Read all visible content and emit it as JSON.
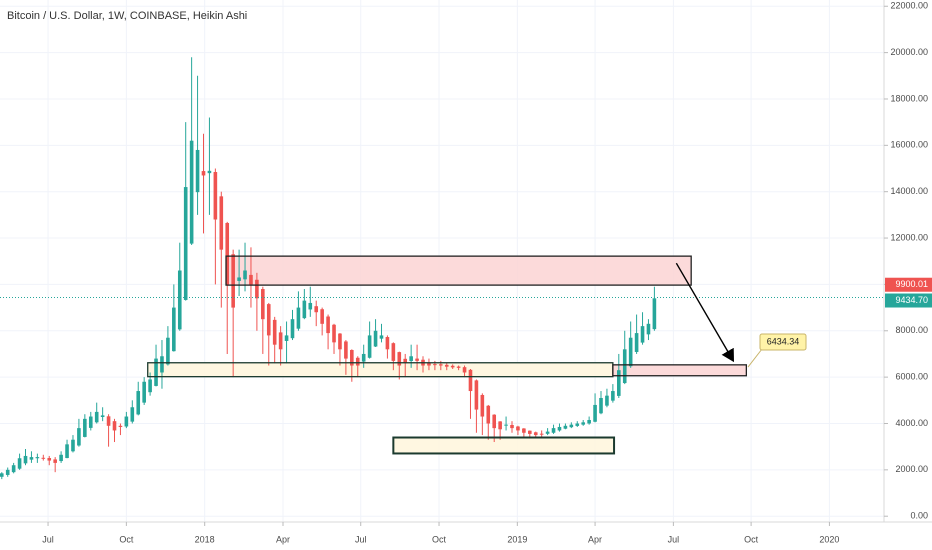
{
  "chart_data": {
    "type": "candlestick",
    "title": "Bitcoin / U.S. Dollar, 1W, COINBASE, Heikin Ashi",
    "up_color": "#26a69a",
    "down_color": "#ef5350",
    "xlim": [
      -0.3,
      148.7
    ],
    "xticks": [
      {
        "value": 7.8,
        "label": "Jul"
      },
      {
        "value": 21,
        "label": "Oct"
      },
      {
        "value": 34.2,
        "label": "2018"
      },
      {
        "value": 47.4,
        "label": "Apr"
      },
      {
        "value": 60.5,
        "label": "Jul"
      },
      {
        "value": 73.7,
        "label": "Oct"
      },
      {
        "value": 86.9,
        "label": "2019"
      },
      {
        "value": 100,
        "label": "Apr"
      },
      {
        "value": 113.2,
        "label": "Jul"
      },
      {
        "value": 126.3,
        "label": "Oct"
      },
      {
        "value": 139.5,
        "label": "2020"
      }
    ],
    "ylim": [
      -250,
      22270
    ],
    "yticks": [
      {
        "value": 0,
        "label": "0.00"
      },
      {
        "value": 2000,
        "label": "2000.00"
      },
      {
        "value": 4000,
        "label": "4000.00"
      },
      {
        "value": 6000,
        "label": "6000.00"
      },
      {
        "value": 8000,
        "label": "8000.00"
      },
      {
        "value": 10000,
        "label": "10000.00"
      },
      {
        "value": 12000,
        "label": "12000.00"
      },
      {
        "value": 14000,
        "label": "14000.00"
      },
      {
        "value": 16000,
        "label": "16000.00"
      },
      {
        "value": 18000,
        "label": "18000.00"
      },
      {
        "value": 20000,
        "label": "20000.00"
      },
      {
        "value": 22000,
        "label": "22000.00"
      }
    ],
    "grid": true,
    "candles": [
      [
        1700,
        1900,
        1600,
        1850
      ],
      [
        1780,
        2100,
        1700,
        2000
      ],
      [
        1900,
        2300,
        1850,
        2200
      ],
      [
        2050,
        2700,
        2000,
        2500
      ],
      [
        2280,
        2900,
        2200,
        2600
      ],
      [
        2440,
        2800,
        2300,
        2550
      ],
      [
        2500,
        2700,
        2300,
        2550
      ],
      [
        2520,
        2650,
        2400,
        2500
      ],
      [
        2510,
        2600,
        2200,
        2400
      ],
      [
        2450,
        2550,
        1900,
        2300
      ],
      [
        2380,
        2800,
        2300,
        2650
      ],
      [
        2510,
        3300,
        2500,
        3100
      ],
      [
        2800,
        3500,
        2750,
        3300
      ],
      [
        3050,
        4200,
        3000,
        3800
      ],
      [
        3420,
        4400,
        3400,
        4200
      ],
      [
        3810,
        4500,
        3700,
        4300
      ],
      [
        4050,
        4900,
        4000,
        4500
      ],
      [
        4280,
        4700,
        4100,
        4350
      ],
      [
        4310,
        4400,
        3000,
        3900
      ],
      [
        4100,
        4200,
        3200,
        3700
      ],
      [
        3900,
        4000,
        3500,
        3850
      ],
      [
        3870,
        4500,
        3800,
        4300
      ],
      [
        4080,
        5000,
        4000,
        4700
      ],
      [
        4390,
        5800,
        4350,
        5400
      ],
      [
        4900,
        6000,
        4800,
        5800
      ],
      [
        5350,
        6200,
        5200,
        5900
      ],
      [
        5620,
        7400,
        5600,
        6800
      ],
      [
        6200,
        7600,
        5500,
        6900
      ],
      [
        6550,
        8200,
        6500,
        7700
      ],
      [
        7120,
        10000,
        7100,
        9000
      ],
      [
        8060,
        11800,
        8000,
        10600
      ],
      [
        9330,
        17000,
        9300,
        14200
      ],
      [
        11760,
        19800,
        11700,
        16200
      ],
      [
        13980,
        19000,
        13000,
        15800
      ],
      [
        14890,
        16500,
        12200,
        14700
      ],
      [
        14800,
        17200,
        13000,
        14900
      ],
      [
        14850,
        15000,
        10000,
        12800
      ],
      [
        13800,
        14000,
        9000,
        11500
      ],
      [
        12650,
        12700,
        7000,
        10000
      ],
      [
        11300,
        11500,
        6000,
        9000
      ],
      [
        10150,
        11500,
        9500,
        10300
      ],
      [
        10220,
        11800,
        9700,
        10600
      ],
      [
        10410,
        11600,
        9000,
        10000
      ],
      [
        10200,
        10500,
        8000,
        9400
      ],
      [
        9800,
        9900,
        7000,
        8500
      ],
      [
        9150,
        9200,
        6500,
        7800
      ],
      [
        8470,
        8600,
        6600,
        7400
      ],
      [
        7930,
        8200,
        6500,
        7200
      ],
      [
        7560,
        8400,
        6600,
        7800
      ],
      [
        7680,
        8900,
        7600,
        8500
      ],
      [
        8090,
        9700,
        8000,
        9000
      ],
      [
        8545,
        9800,
        8500,
        9300
      ],
      [
        8920,
        9900,
        8600,
        9200
      ],
      [
        9060,
        9300,
        8200,
        8800
      ],
      [
        8930,
        9000,
        7800,
        8300
      ],
      [
        8615,
        8700,
        7200,
        7900
      ],
      [
        8260,
        8300,
        7000,
        7500
      ],
      [
        7880,
        7900,
        6500,
        7200
      ],
      [
        7540,
        7600,
        6100,
        6800
      ],
      [
        7170,
        7200,
        5800,
        6500
      ],
      [
        6835,
        6900,
        6000,
        6500
      ],
      [
        6670,
        7400,
        6400,
        7000
      ],
      [
        6835,
        8400,
        6800,
        7800
      ],
      [
        7320,
        8500,
        7300,
        8000
      ],
      [
        7660,
        8300,
        7500,
        7800
      ],
      [
        7730,
        7800,
        6800,
        7200
      ],
      [
        7465,
        7500,
        6300,
        6700
      ],
      [
        7080,
        7100,
        5900,
        6500
      ],
      [
        6790,
        7000,
        6000,
        6600
      ],
      [
        6695,
        7400,
        6400,
        6900
      ],
      [
        6800,
        7400,
        6300,
        6700
      ],
      [
        6750,
        6900,
        6200,
        6500
      ],
      [
        6625,
        6800,
        6300,
        6500
      ],
      [
        6560,
        6700,
        6300,
        6550
      ],
      [
        6555,
        6700,
        6300,
        6500
      ],
      [
        6530,
        6600,
        6300,
        6450
      ],
      [
        6490,
        6550,
        6350,
        6420
      ],
      [
        6455,
        6500,
        6300,
        6400
      ],
      [
        6430,
        6500,
        6000,
        6200
      ],
      [
        6315,
        6350,
        4200,
        5400
      ],
      [
        5860,
        5900,
        3600,
        4600
      ],
      [
        5230,
        5300,
        3500,
        4300
      ],
      [
        4765,
        4800,
        3300,
        4000
      ],
      [
        4380,
        4400,
        3200,
        3800
      ],
      [
        4090,
        4100,
        3300,
        3750
      ],
      [
        3920,
        4300,
        3700,
        3950
      ],
      [
        3935,
        4100,
        3600,
        3800
      ],
      [
        3870,
        3900,
        3500,
        3700
      ],
      [
        3785,
        3800,
        3400,
        3600
      ],
      [
        3690,
        3700,
        3350,
        3550
      ],
      [
        3620,
        3650,
        3400,
        3500
      ],
      [
        3560,
        3700,
        3400,
        3550
      ],
      [
        3555,
        3800,
        3500,
        3650
      ],
      [
        3600,
        3950,
        3550,
        3800
      ],
      [
        3700,
        4000,
        3650,
        3850
      ],
      [
        3775,
        4000,
        3750,
        3900
      ],
      [
        3840,
        4050,
        3800,
        3950
      ],
      [
        3895,
        4100,
        3850,
        4000
      ],
      [
        3950,
        4150,
        3900,
        4050
      ],
      [
        4000,
        4300,
        3950,
        4150
      ],
      [
        4075,
        5300,
        4050,
        4800
      ],
      [
        4440,
        5400,
        4400,
        5100
      ],
      [
        4770,
        5500,
        4700,
        5200
      ],
      [
        4985,
        5700,
        4900,
        5400
      ],
      [
        5190,
        7000,
        5100,
        6300
      ],
      [
        5745,
        8000,
        5700,
        7200
      ],
      [
        6470,
        8400,
        6400,
        7700
      ],
      [
        7085,
        8700,
        7000,
        7900
      ],
      [
        7490,
        8800,
        7400,
        8200
      ],
      [
        7845,
        8500,
        7600,
        8300
      ],
      [
        8070,
        9900,
        8000,
        9400
      ]
    ],
    "price_labels": [
      {
        "value": 9900.01,
        "label": "9900.01",
        "color": "#ef5350"
      },
      {
        "value": 9434.7,
        "label": "9434.70",
        "color": "#26a69a"
      }
    ],
    "zones": [
      {
        "x": [
          37.8,
          116.2
        ],
        "price": [
          9970,
          11220
        ],
        "fill": "#fbd4d4",
        "border": "#222222"
      },
      {
        "x": [
          24.6,
          103
        ],
        "price": [
          6020,
          6620
        ],
        "fill": "#fff6dc",
        "border": "#1b3a2e"
      },
      {
        "x": [
          103,
          125.5
        ],
        "price": [
          6060,
          6530
        ],
        "fill": "#fbd4d4",
        "border": "#222222"
      },
      {
        "x": [
          66,
          103.2
        ],
        "price": [
          2707,
          3395
        ],
        "fill": "#fff6dc",
        "border": "#1b3a2e"
      }
    ],
    "arrow": {
      "x": [
        113.7,
        123.3
      ],
      "price": [
        10915,
        6700
      ]
    },
    "callout": {
      "text": "6434.34",
      "value": 6434.34
    }
  }
}
